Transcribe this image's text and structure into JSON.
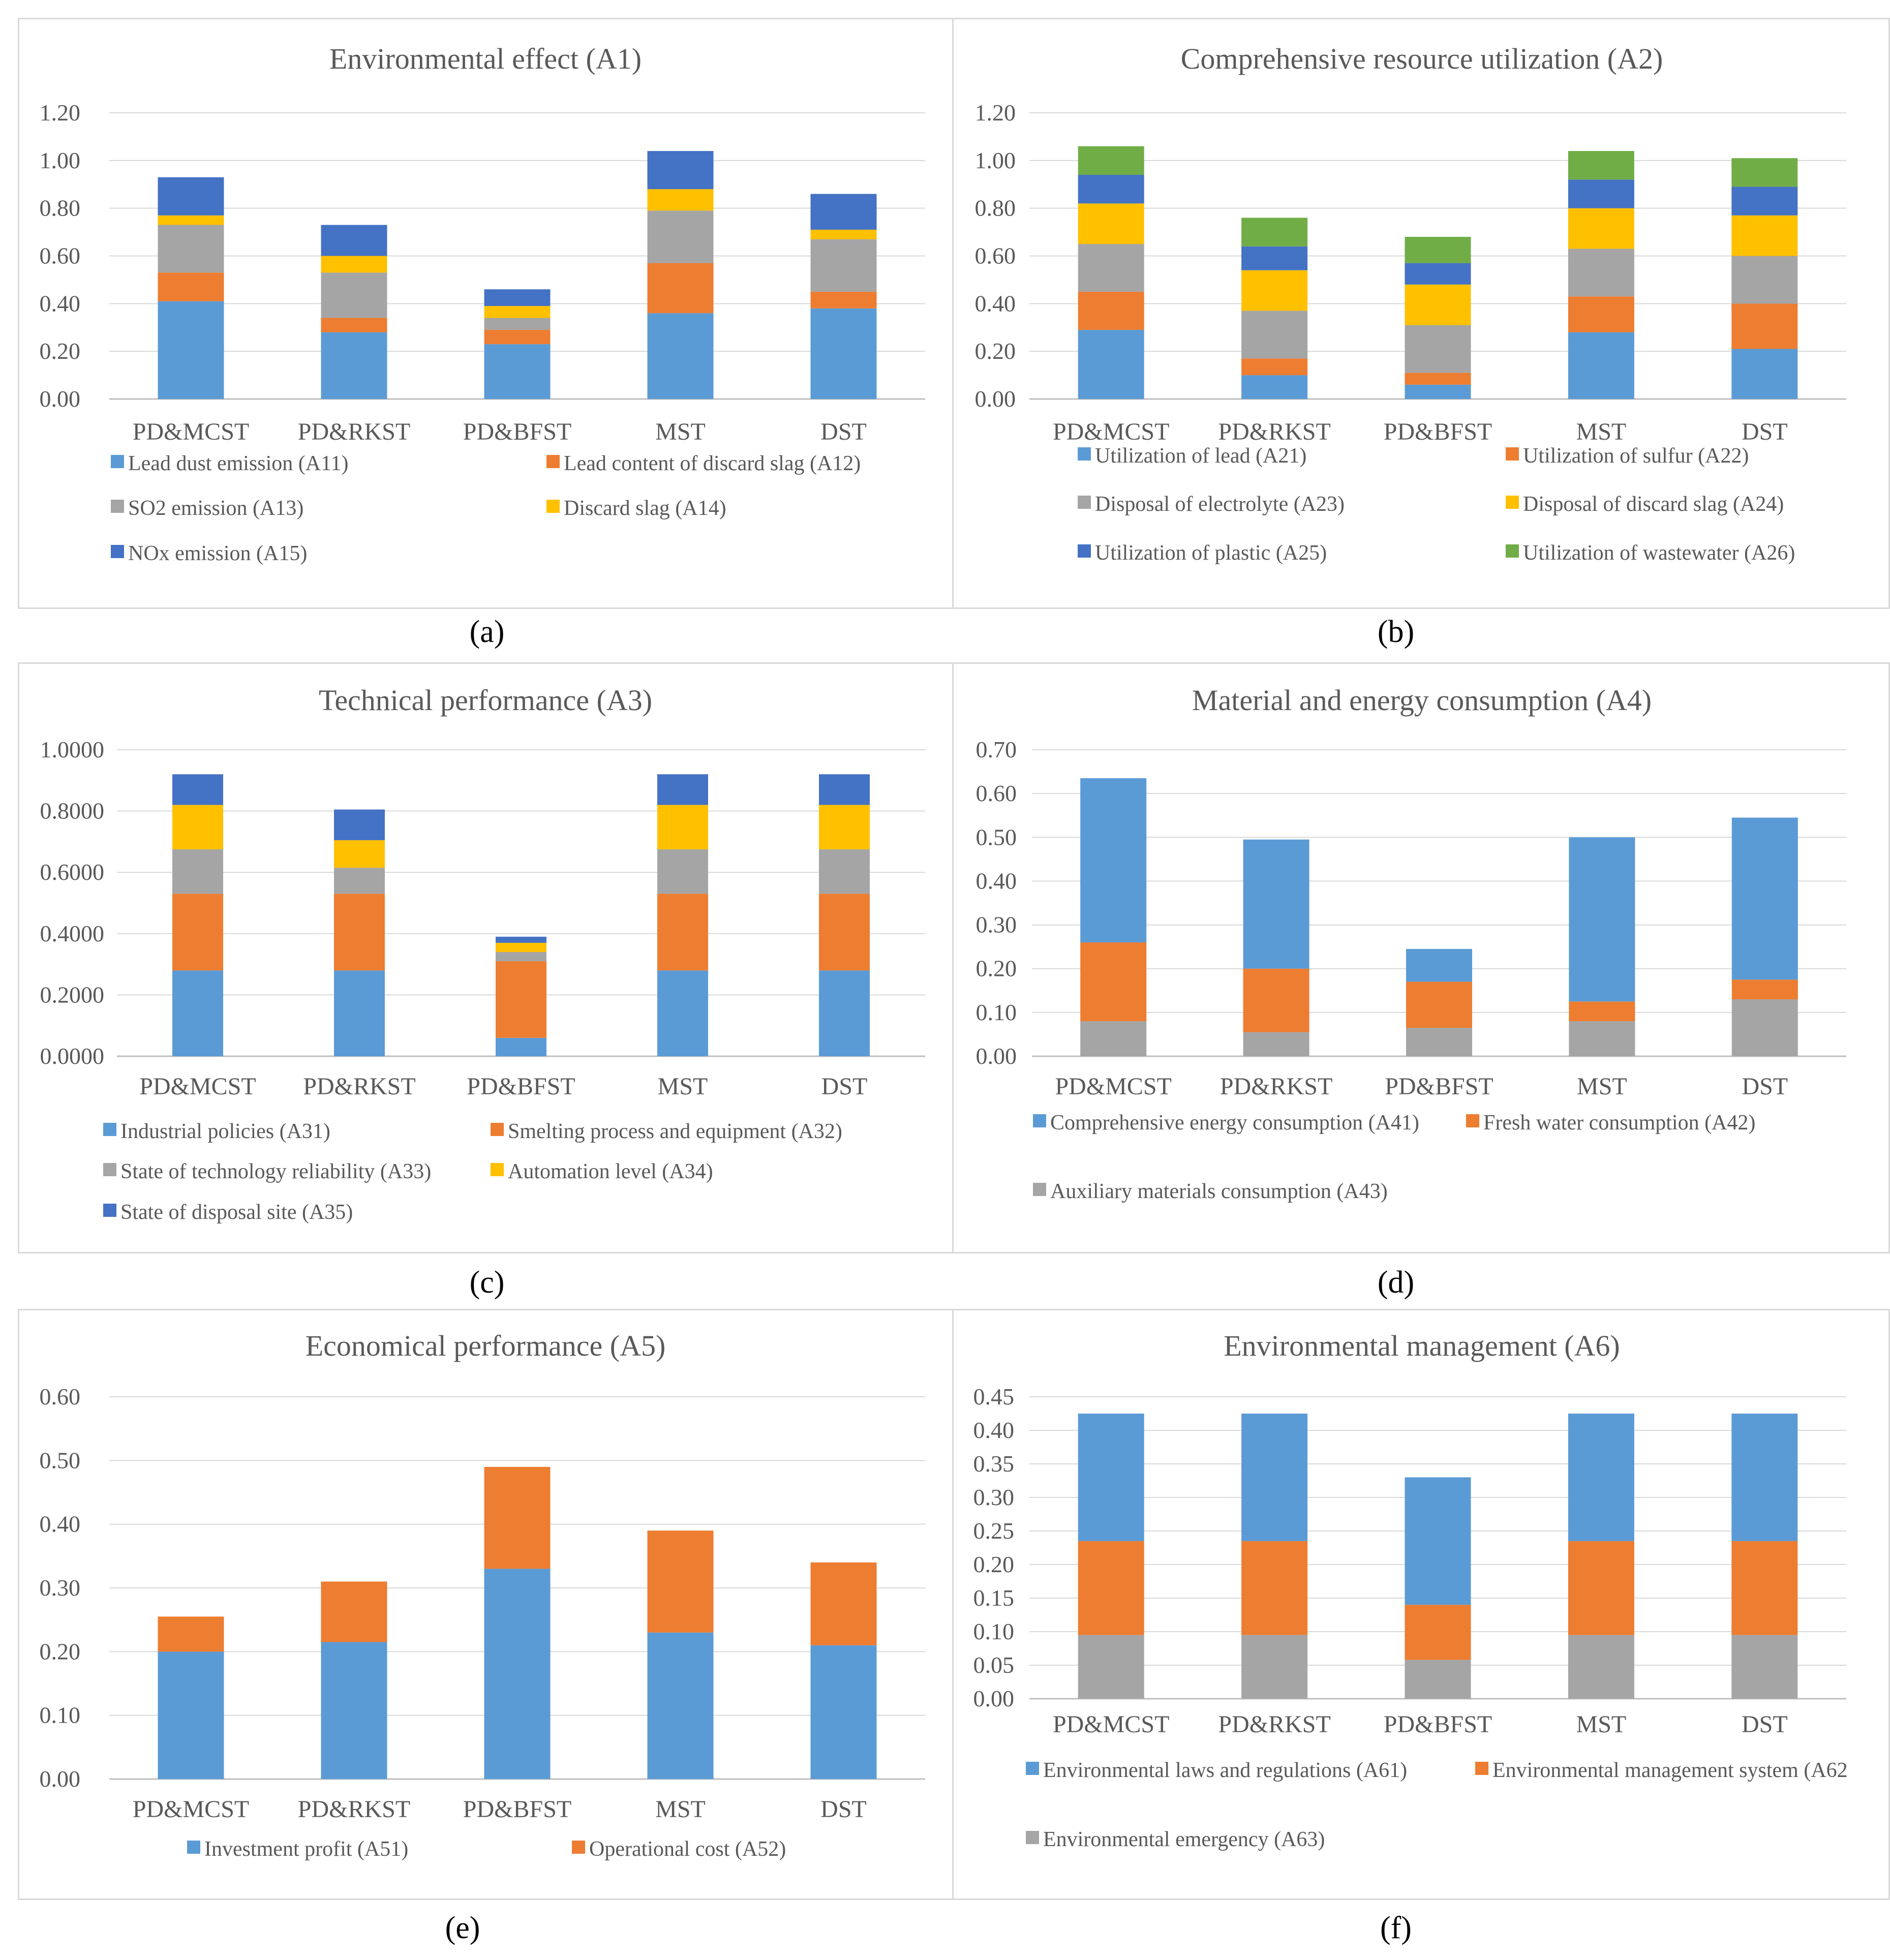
{
  "colors": {
    "blue": "#5b9bd5",
    "orange": "#ed7d31",
    "gray": "#a5a5a5",
    "yellow": "#ffc000",
    "darkblue": "#4472c4",
    "green": "#70ad47"
  },
  "captions": [
    "(a)",
    "(b)",
    "(c)",
    "(d)",
    "(e)",
    "(f)"
  ],
  "chart_data": [
    {
      "type": "bar",
      "stacked": true,
      "title": "Environmental effect (A1)",
      "categories": [
        "PD&MCST",
        "PD&RKST",
        "PD&BFST",
        "MST",
        "DST"
      ],
      "ylim": [
        0,
        1.2
      ],
      "yticks": [
        "0.00",
        "0.20",
        "0.40",
        "0.60",
        "0.80",
        "1.00",
        "1.20"
      ],
      "grid": true,
      "legend": "bottom",
      "series": [
        {
          "name": "Lead dust emission (A11)",
          "color": "#5b9bd5",
          "values": [
            0.41,
            0.28,
            0.23,
            0.36,
            0.38
          ]
        },
        {
          "name": "Lead content of discard slag (A12)",
          "color": "#ed7d31",
          "values": [
            0.12,
            0.06,
            0.06,
            0.21,
            0.07
          ]
        },
        {
          "name": "SO2 emission (A13)",
          "color": "#a5a5a5",
          "values": [
            0.2,
            0.19,
            0.05,
            0.22,
            0.22
          ]
        },
        {
          "name": "Discard slag (A14)",
          "color": "#ffc000",
          "values": [
            0.04,
            0.07,
            0.05,
            0.09,
            0.04
          ]
        },
        {
          "name": "NOx emission (A15)",
          "color": "#4472c4",
          "values": [
            0.16,
            0.13,
            0.07,
            0.16,
            0.15
          ]
        }
      ]
    },
    {
      "type": "bar",
      "stacked": true,
      "title": "Comprehensive resource utilization (A2)",
      "categories": [
        "PD&MCST",
        "PD&RKST",
        "PD&BFST",
        "MST",
        "DST"
      ],
      "ylim": [
        0,
        1.2
      ],
      "yticks": [
        "0.00",
        "0.20",
        "0.40",
        "0.60",
        "0.80",
        "1.00",
        "1.20"
      ],
      "grid": true,
      "legend": "bottom",
      "series": [
        {
          "name": "Utilization of lead (A21)",
          "color": "#5b9bd5",
          "values": [
            0.29,
            0.1,
            0.06,
            0.28,
            0.21
          ]
        },
        {
          "name": "Utilization of sulfur (A22)",
          "color": "#ed7d31",
          "values": [
            0.16,
            0.07,
            0.05,
            0.15,
            0.19
          ]
        },
        {
          "name": "Disposal of electrolyte (A23)",
          "color": "#a5a5a5",
          "values": [
            0.2,
            0.2,
            0.2,
            0.2,
            0.2
          ]
        },
        {
          "name": "Disposal of discard slag (A24)",
          "color": "#ffc000",
          "values": [
            0.17,
            0.17,
            0.17,
            0.17,
            0.17
          ]
        },
        {
          "name": "Utilization of plastic (A25)",
          "color": "#4472c4",
          "values": [
            0.12,
            0.1,
            0.09,
            0.12,
            0.12
          ]
        },
        {
          "name": "Utilization of wastewater (A26)",
          "color": "#70ad47",
          "values": [
            0.12,
            0.12,
            0.11,
            0.12,
            0.12
          ]
        }
      ]
    },
    {
      "type": "bar",
      "stacked": true,
      "title": "Technical performance (A3)",
      "categories": [
        "PD&MCST",
        "PD&RKST",
        "PD&BFST",
        "MST",
        "DST"
      ],
      "ylim": [
        0,
        1.0
      ],
      "yticks": [
        "0.0000",
        "0.2000",
        "0.4000",
        "0.6000",
        "0.8000",
        "1.0000"
      ],
      "grid": true,
      "legend": "bottom",
      "series": [
        {
          "name": "Industrial policies (A31)",
          "color": "#5b9bd5",
          "values": [
            0.28,
            0.28,
            0.06,
            0.28,
            0.28
          ]
        },
        {
          "name": "Smelting process and equipment (A32)",
          "color": "#ed7d31",
          "values": [
            0.25,
            0.25,
            0.25,
            0.25,
            0.25
          ]
        },
        {
          "name": "State of technology reliability (A33)",
          "color": "#a5a5a5",
          "values": [
            0.145,
            0.085,
            0.03,
            0.145,
            0.145
          ]
        },
        {
          "name": "Automation level (A34)",
          "color": "#ffc000",
          "values": [
            0.145,
            0.09,
            0.03,
            0.145,
            0.145
          ]
        },
        {
          "name": "State of disposal site (A35)",
          "color": "#4472c4",
          "values": [
            0.1,
            0.1,
            0.02,
            0.1,
            0.1
          ]
        }
      ]
    },
    {
      "type": "bar",
      "stacked": true,
      "title": "Material and energy consumption (A4)",
      "categories": [
        "PD&MCST",
        "PD&RKST",
        "PD&BFST",
        "MST",
        "DST"
      ],
      "ylim": [
        0,
        0.7
      ],
      "yticks": [
        "0.00",
        "0.10",
        "0.20",
        "0.30",
        "0.40",
        "0.50",
        "0.60",
        "0.70"
      ],
      "grid": true,
      "legend": "bottom",
      "series": [
        {
          "name": "Auxiliary materials consumption (A43)",
          "color": "#a5a5a5",
          "values": [
            0.08,
            0.055,
            0.065,
            0.08,
            0.13
          ]
        },
        {
          "name": "Fresh water consumption (A42)",
          "color": "#ed7d31",
          "values": [
            0.18,
            0.145,
            0.105,
            0.045,
            0.045
          ]
        },
        {
          "name": "Comprehensive energy consumption (A41)",
          "color": "#5b9bd5",
          "values": [
            0.375,
            0.295,
            0.075,
            0.375,
            0.37
          ]
        }
      ]
    },
    {
      "type": "bar",
      "stacked": true,
      "title": "Economical performance (A5)",
      "categories": [
        "PD&MCST",
        "PD&RKST",
        "PD&BFST",
        "MST",
        "DST"
      ],
      "ylim": [
        0,
        0.6
      ],
      "yticks": [
        "0.00",
        "0.10",
        "0.20",
        "0.30",
        "0.40",
        "0.50",
        "0.60"
      ],
      "grid": true,
      "legend": "bottom",
      "series": [
        {
          "name": "Investment profit (A51)",
          "color": "#5b9bd5",
          "values": [
            0.2,
            0.215,
            0.33,
            0.23,
            0.21
          ]
        },
        {
          "name": "Operational cost (A52)",
          "color": "#ed7d31",
          "values": [
            0.055,
            0.095,
            0.16,
            0.16,
            0.13
          ]
        }
      ]
    },
    {
      "type": "bar",
      "stacked": true,
      "title": "Environmental management (A6)",
      "categories": [
        "PD&MCST",
        "PD&RKST",
        "PD&BFST",
        "MST",
        "DST"
      ],
      "ylim": [
        0,
        0.45
      ],
      "yticks": [
        "0.00",
        "0.05",
        "0.10",
        "0.15",
        "0.20",
        "0.25",
        "0.30",
        "0.35",
        "0.40",
        "0.45"
      ],
      "grid": true,
      "legend": "bottom",
      "series": [
        {
          "name": "Environmental emergency (A63)",
          "color": "#a5a5a5",
          "values": [
            0.095,
            0.095,
            0.058,
            0.095,
            0.095
          ]
        },
        {
          "name": "Environmental management system (A62",
          "color": "#ed7d31",
          "values": [
            0.14,
            0.14,
            0.082,
            0.14,
            0.14
          ]
        },
        {
          "name": "Environmental laws and regulations (A61)",
          "color": "#5b9bd5",
          "values": [
            0.19,
            0.19,
            0.19,
            0.19,
            0.19
          ]
        }
      ]
    }
  ]
}
